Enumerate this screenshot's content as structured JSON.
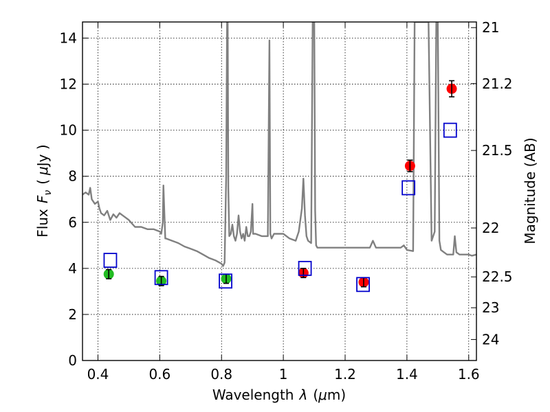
{
  "chart_data": {
    "type": "scatter",
    "title": "",
    "xlabel_prefix": "Wavelength",
    "xlabel_symbol": "λ",
    "xlabel_unit_open": "(",
    "xlabel_unit_mu": "μ",
    "xlabel_unit_rest": "m)",
    "ylabel_prefix": "Flux",
    "ylabel_symbol": "F",
    "ylabel_subscript": "ν",
    "ylabel_unit_open": "(",
    "ylabel_unit_mu": "μ",
    "ylabel_unit_rest": "Jy )",
    "y2label": "Magnitude (AB)",
    "xlim": [
      0.35,
      1.625
    ],
    "ylim": [
      0,
      14.7
    ],
    "grid": true,
    "x_ticks": [
      {
        "value": 0.4,
        "label": "0.4"
      },
      {
        "value": 0.6,
        "label": "0.6"
      },
      {
        "value": 0.8,
        "label": "0.8"
      },
      {
        "value": 1.0,
        "label": "1"
      },
      {
        "value": 1.2,
        "label": "1.2"
      },
      {
        "value": 1.4,
        "label": "1.4"
      },
      {
        "value": 1.6,
        "label": "1.6"
      }
    ],
    "y_ticks": [
      {
        "value": 0,
        "label": "0"
      },
      {
        "value": 2,
        "label": "2"
      },
      {
        "value": 4,
        "label": "4"
      },
      {
        "value": 6,
        "label": "6"
      },
      {
        "value": 8,
        "label": "8"
      },
      {
        "value": 10,
        "label": "10"
      },
      {
        "value": 12,
        "label": "12"
      },
      {
        "value": 14,
        "label": "14"
      }
    ],
    "y2_ticks": [
      {
        "value": 21,
        "label": "21"
      },
      {
        "value": 21.2,
        "label": "21.2"
      },
      {
        "value": 21.5,
        "label": "21.5"
      },
      {
        "value": 22,
        "label": "22"
      },
      {
        "value": 22.5,
        "label": "22.5"
      },
      {
        "value": 23,
        "label": "23"
      },
      {
        "value": 24,
        "label": "24"
      }
    ],
    "colors": {
      "model_line": "#808080",
      "green_points": "#22bb22",
      "red_points": "#ff0000",
      "model_squares": "#0000cc",
      "error_bars": "#000000"
    },
    "series": [
      {
        "kind": "line",
        "color_key": "model_line",
        "x": [
          0.35,
          0.36,
          0.37,
          0.375,
          0.38,
          0.39,
          0.4,
          0.405,
          0.41,
          0.42,
          0.43,
          0.44,
          0.45,
          0.46,
          0.47,
          0.48,
          0.5,
          0.52,
          0.54,
          0.56,
          0.58,
          0.6,
          0.605,
          0.61,
          0.612,
          0.615,
          0.618,
          0.62,
          0.64,
          0.66,
          0.68,
          0.7,
          0.72,
          0.74,
          0.76,
          0.78,
          0.8,
          0.805,
          0.81,
          0.815,
          0.818,
          0.82,
          0.822,
          0.825,
          0.83,
          0.835,
          0.84,
          0.845,
          0.85,
          0.855,
          0.86,
          0.865,
          0.87,
          0.875,
          0.88,
          0.885,
          0.89,
          0.895,
          0.9,
          0.902,
          0.905,
          0.91,
          0.93,
          0.95,
          0.955,
          0.958,
          0.962,
          0.97,
          1.0,
          1.02,
          1.04,
          1.05,
          1.06,
          1.065,
          1.07,
          1.075,
          1.08,
          1.09,
          1.095,
          1.1,
          1.103,
          1.106,
          1.11,
          1.12,
          1.15,
          1.2,
          1.25,
          1.28,
          1.29,
          1.3,
          1.35,
          1.38,
          1.39,
          1.4,
          1.42,
          1.425,
          1.43,
          1.435,
          1.44,
          1.45,
          1.455,
          1.46,
          1.465,
          1.47,
          1.48,
          1.49,
          1.495,
          1.5,
          1.505,
          1.51,
          1.52,
          1.53,
          1.545,
          1.55,
          1.555,
          1.56,
          1.57,
          1.58,
          1.6,
          1.61,
          1.625
        ],
        "y": [
          7.2,
          7.3,
          7.2,
          7.5,
          7.0,
          6.8,
          6.9,
          6.6,
          6.4,
          6.3,
          6.5,
          6.1,
          6.35,
          6.2,
          6.4,
          6.3,
          6.1,
          5.8,
          5.8,
          5.7,
          5.7,
          5.6,
          5.5,
          6.0,
          7.6,
          6.4,
          5.3,
          5.3,
          5.2,
          5.1,
          4.95,
          4.85,
          4.75,
          4.6,
          4.45,
          4.35,
          4.2,
          4.1,
          4.25,
          8.0,
          14.7,
          14.7,
          7.5,
          5.4,
          5.5,
          5.9,
          5.4,
          5.2,
          5.5,
          6.3,
          5.6,
          5.3,
          5.5,
          5.2,
          5.8,
          5.4,
          5.4,
          5.6,
          6.8,
          5.5,
          5.5,
          5.5,
          5.4,
          5.4,
          13.9,
          5.5,
          5.3,
          5.5,
          5.5,
          5.3,
          5.2,
          5.6,
          6.6,
          7.9,
          6.3,
          5.4,
          5.2,
          5.1,
          14.7,
          14.7,
          6.5,
          5.0,
          4.9,
          4.9,
          4.9,
          4.9,
          4.9,
          4.9,
          5.2,
          4.9,
          4.9,
          4.9,
          5.0,
          4.8,
          4.75,
          14.7,
          14.7,
          14.7,
          14.7,
          14.7,
          14.7,
          14.7,
          14.7,
          14.7,
          5.2,
          5.6,
          14.7,
          14.7,
          5.2,
          4.8,
          4.7,
          4.6,
          4.6,
          4.6,
          5.4,
          4.7,
          4.6,
          4.6,
          4.6,
          4.55,
          4.6
        ]
      },
      {
        "kind": "points",
        "color_key": "green_points",
        "marker": "circle",
        "points": [
          {
            "x": 0.435,
            "y": 3.75,
            "err": 0.2
          },
          {
            "x": 0.605,
            "y": 3.45,
            "err": 0.2
          },
          {
            "x": 0.815,
            "y": 3.55,
            "err": 0.2
          }
        ]
      },
      {
        "kind": "points",
        "color_key": "red_points",
        "marker": "circle",
        "points": [
          {
            "x": 1.065,
            "y": 3.8,
            "err": 0.2
          },
          {
            "x": 1.26,
            "y": 3.4,
            "err": 0.2
          },
          {
            "x": 1.41,
            "y": 8.45,
            "err": 0.25
          },
          {
            "x": 1.545,
            "y": 11.8,
            "err": 0.35
          }
        ]
      },
      {
        "kind": "points",
        "color_key": "model_squares",
        "marker": "square",
        "points": [
          {
            "x": 0.44,
            "y": 4.35
          },
          {
            "x": 0.605,
            "y": 3.6
          },
          {
            "x": 0.813,
            "y": 3.45
          },
          {
            "x": 1.07,
            "y": 4.0
          },
          {
            "x": 1.258,
            "y": 3.3
          },
          {
            "x": 1.405,
            "y": 7.5
          },
          {
            "x": 1.54,
            "y": 10.0
          }
        ]
      }
    ]
  }
}
